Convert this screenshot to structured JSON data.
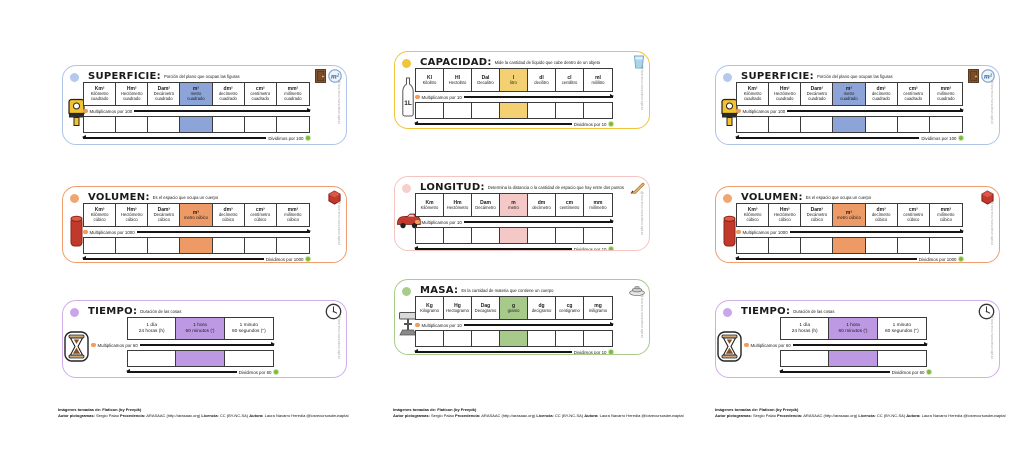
{
  "page": {
    "background": "#ffffff"
  },
  "watermark_text": "@losrecursosdeunaptal",
  "cards": {
    "superficie": {
      "title": "SUPERFICIE:",
      "description": "Porción del plano que ocupan las figuras",
      "multiply_label": "Multiplicamos por 100",
      "divide_label": "Dividimos por 100",
      "colors": {
        "border": "#aec4e6",
        "dot": "#b5c9ec",
        "highlight": "#8ca4d8"
      },
      "left_icon": "measuring-tape",
      "top_icons": [
        "door",
        "meter-squared-badge"
      ],
      "highlight_index": 3,
      "units": [
        {
          "abbr": "Km²",
          "name": "Kilómetro cuadrado"
        },
        {
          "abbr": "Hm²",
          "name": "Hectómetro cuadrado"
        },
        {
          "abbr": "Dam²",
          "name": "Decámetro cuadrado"
        },
        {
          "abbr": "m²",
          "name": "metro cuadrado"
        },
        {
          "abbr": "dm²",
          "name": "decímetro cuadrado"
        },
        {
          "abbr": "cm²",
          "name": "centímetro cuadrado"
        },
        {
          "abbr": "mm²",
          "name": "milímetro cuadrado"
        }
      ]
    },
    "capacidad": {
      "title": "CAPACIDAD:",
      "description": "Mide la cantidad de líquido que cabe dentro de un objeto",
      "multiply_label": "Multiplicamos por 10",
      "divide_label": "Dividimos por 10",
      "colors": {
        "border": "#f0c43c",
        "dot": "#f0c43c",
        "highlight": "#f3d173"
      },
      "left_icon": "bottle-1l",
      "top_icons": [
        "water-glass"
      ],
      "highlight_index": 3,
      "units": [
        {
          "abbr": "Kl",
          "name": "Kilolitro"
        },
        {
          "abbr": "Hl",
          "name": "Hectolitro"
        },
        {
          "abbr": "Dal",
          "name": "Decalitro"
        },
        {
          "abbr": "l",
          "name": "litro"
        },
        {
          "abbr": "dl",
          "name": "decilitro"
        },
        {
          "abbr": "cl",
          "name": "centilitro"
        },
        {
          "abbr": "ml",
          "name": "mililitro"
        }
      ]
    },
    "longitud": {
      "title": "LONGITUD:",
      "description": "Determina la distancia o la cantidad de espacio que hay entre dos puntos",
      "multiply_label": "Multiplicamos por 10",
      "divide_label": "Dividimos por 10",
      "colors": {
        "border": "#f4c4c2",
        "dot": "#f6cecc",
        "highlight": "#f4c8c6"
      },
      "left_icon": "red-car",
      "top_icons": [
        "pencil"
      ],
      "highlight_index": 3,
      "units": [
        {
          "abbr": "Km",
          "name": "Kilómetro"
        },
        {
          "abbr": "Hm",
          "name": "Hectómetro"
        },
        {
          "abbr": "Dam",
          "name": "Decámetro"
        },
        {
          "abbr": "m",
          "name": "metro"
        },
        {
          "abbr": "dm",
          "name": "decímetro"
        },
        {
          "abbr": "cm",
          "name": "centímetro"
        },
        {
          "abbr": "mm",
          "name": "milímetro"
        }
      ]
    },
    "volumen": {
      "title": "VOLUMEN:",
      "description": "Es el espacio que ocupa un cuerpo",
      "multiply_label": "Multiplicamos por 1000",
      "divide_label": "Dividimos por 1000",
      "colors": {
        "border": "#f09d6e",
        "dot": "#f0a673",
        "highlight": "#ed9a66"
      },
      "left_icon": "red-cylinder",
      "top_icons": [
        "red-hexagon"
      ],
      "highlight_index": 3,
      "units": [
        {
          "abbr": "Km³",
          "name": "Kilómetro cúbico"
        },
        {
          "abbr": "Hm³",
          "name": "Hectómetro cúbico"
        },
        {
          "abbr": "Dam³",
          "name": "Decámetro cúbico"
        },
        {
          "abbr": "m³",
          "name": "metro cúbico"
        },
        {
          "abbr": "dm³",
          "name": "decímetro cúbico"
        },
        {
          "abbr": "cm³",
          "name": "centímetro cúbico"
        },
        {
          "abbr": "mm³",
          "name": "milímetro cúbico"
        }
      ]
    },
    "masa": {
      "title": "MASA:",
      "description": "Es la cantidad de materia que contiene un cuerpo",
      "multiply_label": "Multiplicamos por 10",
      "divide_label": "Dividimos por 10",
      "colors": {
        "border": "#a8cc8c",
        "dot": "#a8cc8c",
        "highlight": "#a7ca8b"
      },
      "left_icon": "balance-scale",
      "top_icons": [
        "kitchen-scale"
      ],
      "highlight_index": 3,
      "units": [
        {
          "abbr": "Kg",
          "name": "Kilogramo"
        },
        {
          "abbr": "Hg",
          "name": "Hectogramo"
        },
        {
          "abbr": "Dag",
          "name": "Decagramo"
        },
        {
          "abbr": "g",
          "name": "gramo"
        },
        {
          "abbr": "dg",
          "name": "decigramo"
        },
        {
          "abbr": "cg",
          "name": "centigramo"
        },
        {
          "abbr": "mg",
          "name": "miligramo"
        }
      ]
    },
    "tiempo": {
      "title": "TIEMPO:",
      "description": "Duración de las cosas",
      "multiply_label": "Multiplicamos por 60",
      "divide_label": "Dividimos por 60",
      "colors": {
        "border": "#cfaeea",
        "dot": "#c9a6ea",
        "highlight": "#bd99e4"
      },
      "left_icon": "hourglass",
      "top_icons": [
        "clock"
      ],
      "highlight_index": 1,
      "units": [
        {
          "abbr": "1 día",
          "name": "24 horas (h)"
        },
        {
          "abbr": "1 hora",
          "name": "60 minutos (')"
        },
        {
          "abbr": "1 minuto",
          "name": "60 segundos (\")"
        }
      ]
    }
  },
  "layout_slots": [
    {
      "card": "superficie"
    },
    {
      "card": "capacidad"
    },
    {
      "card": "superficie"
    },
    {
      "card": "volumen"
    },
    {
      "card": "longitud"
    },
    {
      "card": "volumen"
    },
    {
      "card": "tiempo"
    },
    {
      "card": "masa"
    },
    {
      "card": "tiempo"
    }
  ],
  "attribution": {
    "line1": "Imágenes tomadas de: Flaticon (by Freepik)",
    "line2": [
      {
        "b": true,
        "t": "Autor pictogramas: "
      },
      {
        "b": false,
        "t": "Sergio Palao "
      },
      {
        "b": true,
        "t": "Procedencia: "
      },
      {
        "b": false,
        "t": "ARASAAC (http://arasaac.org) "
      },
      {
        "b": true,
        "t": "Licencia: "
      },
      {
        "b": false,
        "t": "CC (BY-NC-SA) "
      },
      {
        "b": true,
        "t": "Autora: "
      },
      {
        "b": false,
        "t": "Laura Navarro Heredia @losrecursosdeunaptal"
      }
    ]
  }
}
